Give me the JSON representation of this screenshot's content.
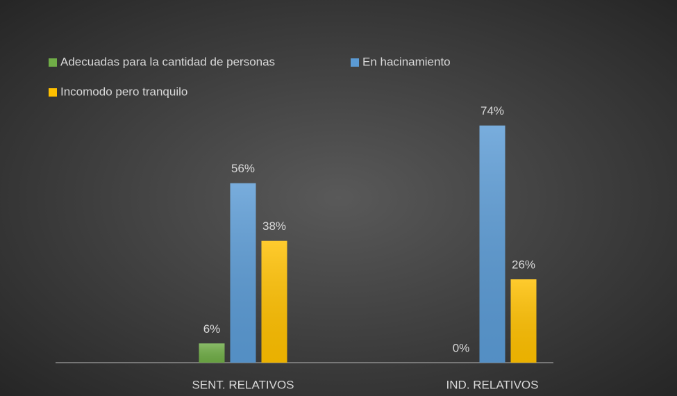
{
  "chart_data": {
    "type": "bar",
    "categories": [
      "SENT. RELATIVOS",
      "IND. RELATIVOS"
    ],
    "series": [
      {
        "name": "Adecuadas para la cantidad de personas",
        "color": "#70ad47",
        "values": [
          6,
          0
        ],
        "value_labels": [
          "6%",
          "0%"
        ]
      },
      {
        "name": "En hacinamiento",
        "color": "#5b9bd5",
        "values": [
          56,
          74
        ],
        "value_labels": [
          "56%",
          "74%"
        ]
      },
      {
        "name": "Incomodo pero tranquilo",
        "color": "#ffc000",
        "values": [
          38,
          26
        ],
        "value_labels": [
          "38%",
          "26%"
        ]
      }
    ],
    "ylim": [
      0,
      80
    ]
  }
}
